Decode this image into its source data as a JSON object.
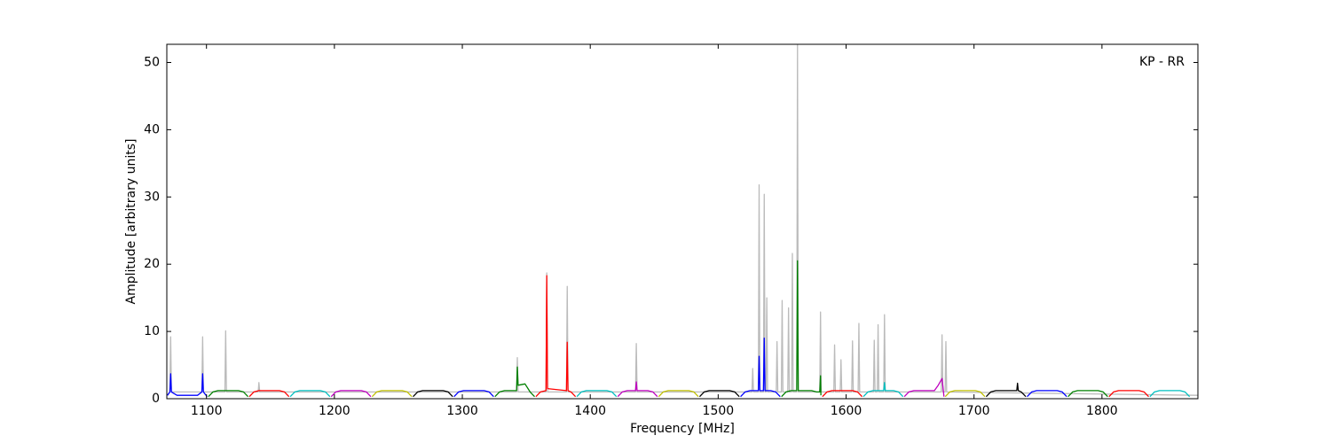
{
  "chart_data": {
    "type": "line",
    "annotation": "KP - RR",
    "xlabel": "Frequency [MHz]",
    "ylabel": "Amplitude [arbitrary units]",
    "xlim": [
      1069,
      1875
    ],
    "ylim": [
      0,
      52.7
    ],
    "xticks": [
      1100,
      1200,
      1300,
      1400,
      1500,
      1600,
      1700,
      1800
    ],
    "yticks": [
      0,
      10,
      20,
      30,
      40,
      50
    ],
    "series": [
      {
        "color": "#bbbbbb",
        "x": [
          1069,
          1071.4,
          1072,
          1072.6,
          1096.4,
          1097,
          1097.6,
          1114.4,
          1115,
          1115.6,
          1140.4,
          1141,
          1141.6,
          1342.4,
          1343,
          1343.6,
          1365.4,
          1366,
          1366.6,
          1381.4,
          1382,
          1382.6,
          1435.4,
          1436,
          1436.6,
          1526.4,
          1527,
          1527.6,
          1531.4,
          1532,
          1532.6,
          1535.4,
          1536,
          1536.6,
          1537.4,
          1538,
          1538.6,
          1545.4,
          1546,
          1546.6,
          1549.4,
          1550,
          1550.6,
          1554.4,
          1555,
          1555.6,
          1557.4,
          1558,
          1558.6,
          1561.4,
          1562,
          1562.6,
          1579.4,
          1580,
          1580.6,
          1590.4,
          1591,
          1591.6,
          1595.4,
          1596,
          1596.6,
          1604.4,
          1605,
          1605.6,
          1609.4,
          1610,
          1610.6,
          1621.4,
          1622,
          1622.6,
          1624.4,
          1625,
          1625.6,
          1629.4,
          1630,
          1630.6,
          1674.4,
          1675,
          1675.6,
          1677.4,
          1678,
          1678.6,
          1875
        ],
        "values": [
          0.5,
          1,
          9.2,
          1,
          1,
          9.2,
          1,
          1,
          10.1,
          1,
          1,
          2.4,
          1,
          1,
          6.1,
          1,
          1,
          18.7,
          1,
          1,
          16.7,
          1,
          1,
          8.2,
          1,
          1,
          4.5,
          1,
          1,
          31.8,
          1,
          1,
          30.4,
          1,
          1,
          15,
          1,
          1,
          8.5,
          1,
          1,
          14.6,
          1,
          1,
          13.5,
          1,
          1,
          21.6,
          1,
          1,
          52.7,
          1,
          1,
          12.9,
          1,
          1,
          8,
          1,
          1,
          5.8,
          1,
          1,
          8.6,
          1,
          1,
          11.2,
          1,
          1,
          8.7,
          1,
          1,
          11,
          1,
          1,
          12.5,
          1,
          1,
          9.5,
          1,
          1,
          8.5,
          1,
          0.5
        ]
      },
      {
        "color": "#0000ff",
        "x": [
          1069.5,
          1071.4,
          1072,
          1072.6,
          1077,
          1093,
          1096.4,
          1097,
          1097.6,
          1100.5
        ],
        "values": [
          0.5,
          1,
          3.7,
          1,
          0.5,
          0.5,
          1,
          3.7,
          1,
          0.3
        ]
      },
      {
        "color": "#008000",
        "x": [
          1101.5,
          1105,
          1109,
          1125,
          1129,
          1132.5
        ],
        "values": [
          0.3,
          1,
          1.2,
          1.2,
          1,
          0.3
        ]
      },
      {
        "color": "#ff0000",
        "x": [
          1133.5,
          1137,
          1141,
          1157,
          1161,
          1164.5
        ],
        "values": [
          0.3,
          1,
          1.2,
          1.2,
          1,
          0.3
        ]
      },
      {
        "color": "#00bfbf",
        "x": [
          1165.5,
          1169,
          1173,
          1189,
          1193,
          1196.5
        ],
        "values": [
          0.3,
          1,
          1.2,
          1.2,
          1,
          0.3
        ]
      },
      {
        "color": "#bf00bf",
        "x": [
          1197.5,
          1201,
          1205,
          1221,
          1225,
          1228.5
        ],
        "values": [
          0.3,
          1,
          1.2,
          1.2,
          1,
          0.3
        ]
      },
      {
        "color": "#bfbf00",
        "x": [
          1229.5,
          1233,
          1237,
          1253,
          1257,
          1260.5
        ],
        "values": [
          0.3,
          1,
          1.2,
          1.2,
          1,
          0.3
        ]
      },
      {
        "color": "#000000",
        "x": [
          1261.5,
          1265,
          1269,
          1285,
          1289,
          1292.5
        ],
        "values": [
          0.3,
          1,
          1.2,
          1.2,
          1,
          0.3
        ]
      },
      {
        "color": "#0000ff",
        "x": [
          1293.5,
          1297,
          1301,
          1317,
          1321,
          1324.5
        ],
        "values": [
          0.3,
          1,
          1.2,
          1.2,
          1,
          0.3
        ]
      },
      {
        "color": "#008000",
        "x": [
          1325.5,
          1329,
          1333,
          1342.4,
          1343,
          1343.6,
          1349,
          1353,
          1356.5
        ],
        "values": [
          0.3,
          1,
          1.2,
          1.2,
          4.7,
          2,
          2.2,
          1,
          0.3
        ]
      },
      {
        "color": "#ff0000",
        "x": [
          1357.5,
          1361,
          1365.4,
          1366,
          1366.6,
          1381.4,
          1382,
          1382.6,
          1385,
          1388.5
        ],
        "values": [
          0.3,
          1,
          1.2,
          18.3,
          1.5,
          1.2,
          8.4,
          1.2,
          1,
          0.3
        ]
      },
      {
        "color": "#00bfbf",
        "x": [
          1389.5,
          1393,
          1397,
          1413,
          1417,
          1420.5
        ],
        "values": [
          0.3,
          1,
          1.2,
          1.2,
          1,
          0.3
        ]
      },
      {
        "color": "#bf00bf",
        "x": [
          1421.5,
          1425,
          1429,
          1435.4,
          1436,
          1436.6,
          1445,
          1449,
          1452.5
        ],
        "values": [
          0.3,
          1,
          1.2,
          1.2,
          2.5,
          1.2,
          1.2,
          1,
          0.3
        ]
      },
      {
        "color": "#bfbf00",
        "x": [
          1453.5,
          1457,
          1461,
          1477,
          1481,
          1484.5
        ],
        "values": [
          0.3,
          1,
          1.2,
          1.2,
          1,
          0.3
        ]
      },
      {
        "color": "#000000",
        "x": [
          1485.5,
          1489,
          1493,
          1509,
          1513,
          1516.5
        ],
        "values": [
          0.3,
          1,
          1.2,
          1.2,
          1,
          0.3
        ]
      },
      {
        "color": "#0000ff",
        "x": [
          1517.5,
          1521,
          1525,
          1531.4,
          1532,
          1532.6,
          1535.4,
          1536,
          1536.6,
          1541,
          1545,
          1548.5
        ],
        "values": [
          0.3,
          1,
          1.2,
          1.2,
          6.3,
          1.2,
          1.2,
          9,
          1.2,
          1.2,
          1,
          0.3
        ]
      },
      {
        "color": "#008000",
        "x": [
          1549.5,
          1553,
          1557,
          1561.4,
          1562,
          1562.6,
          1573,
          1577,
          1579.4,
          1580,
          1580.3
        ],
        "values": [
          0.3,
          1,
          1.2,
          1.2,
          20.5,
          1.2,
          1.2,
          1,
          1,
          3.4,
          0.5
        ]
      },
      {
        "color": "#ff0000",
        "x": [
          1581.5,
          1585,
          1589,
          1605,
          1609,
          1612.5
        ],
        "values": [
          0.3,
          1,
          1.2,
          1.2,
          1,
          0.3
        ]
      },
      {
        "color": "#00bfbf",
        "x": [
          1613.5,
          1617,
          1621,
          1629.4,
          1630,
          1630.6,
          1637,
          1641,
          1644.5
        ],
        "values": [
          0.3,
          1,
          1.2,
          1.2,
          2.4,
          1.2,
          1.2,
          1,
          0.3
        ]
      },
      {
        "color": "#bf00bf",
        "x": [
          1645.5,
          1649,
          1653,
          1669,
          1672,
          1675,
          1676.5
        ],
        "values": [
          0.3,
          1,
          1.2,
          1.2,
          2,
          3,
          0.3
        ]
      },
      {
        "color": "#bfbf00",
        "x": [
          1677.5,
          1681,
          1685,
          1701,
          1705,
          1708.5
        ],
        "values": [
          0.3,
          1,
          1.2,
          1.2,
          1,
          0.3
        ]
      },
      {
        "color": "#000000",
        "x": [
          1709.5,
          1713,
          1717,
          1733.4,
          1734,
          1734.6,
          1737,
          1740.5
        ],
        "values": [
          0.3,
          1,
          1.2,
          1.2,
          2.3,
          1.2,
          1,
          0.3
        ]
      },
      {
        "color": "#0000ff",
        "x": [
          1741.5,
          1745,
          1749,
          1765,
          1769,
          1772.5
        ],
        "values": [
          0.3,
          1,
          1.2,
          1.2,
          1,
          0.3
        ]
      },
      {
        "color": "#008000",
        "x": [
          1773.5,
          1777,
          1781,
          1797,
          1801,
          1804.5
        ],
        "values": [
          0.3,
          1,
          1.2,
          1.2,
          1,
          0.3
        ]
      },
      {
        "color": "#ff0000",
        "x": [
          1805.5,
          1809,
          1813,
          1829,
          1833,
          1836.5
        ],
        "values": [
          0.3,
          1,
          1.2,
          1.2,
          1,
          0.3
        ]
      },
      {
        "color": "#00bfbf",
        "x": [
          1837.5,
          1841,
          1845,
          1861,
          1865,
          1868.5
        ],
        "values": [
          0.3,
          1,
          1.2,
          1.2,
          1,
          0.3
        ]
      }
    ]
  }
}
